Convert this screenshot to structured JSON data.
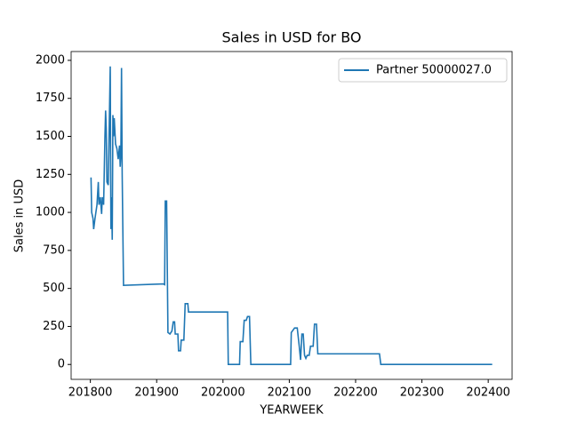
{
  "chart_data": {
    "type": "line",
    "title": "Sales in USD for BO",
    "xlabel": "YEARWEEK",
    "ylabel": "Sales in USD",
    "legend": "upper right",
    "xlim": [
      201771,
      202436
    ],
    "xticks": [
      201800,
      201900,
      202000,
      202100,
      202200,
      202300,
      202400
    ],
    "ylim": [
      -98,
      2058
    ],
    "yticks": [
      0,
      250,
      500,
      750,
      1000,
      1250,
      1500,
      1750,
      2000
    ],
    "x": [
      201801,
      201802,
      201804,
      201805,
      201807,
      201810,
      201812,
      201813,
      201815,
      201817,
      201818,
      201820,
      201822,
      201823,
      201824,
      201825,
      201827,
      201830,
      201831,
      201832,
      201833,
      201834,
      201835,
      201836,
      201838,
      201840,
      201842,
      201844,
      201845,
      201846,
      201847,
      201848,
      201850,
      201910,
      201912,
      201913,
      201915,
      201917,
      201920,
      201923,
      201925,
      201927,
      201928,
      201932,
      201933,
      201936,
      201937,
      201941,
      201943,
      201947,
      201948,
      202007,
      202008,
      202025,
      202026,
      202030,
      202032,
      202035,
      202037,
      202040,
      202042,
      202102,
      202103,
      202108,
      202112,
      202115,
      202117,
      202119,
      202121,
      202123,
      202125,
      202127,
      202130,
      202132,
      202136,
      202138,
      202141,
      202143,
      202236,
      202238,
      202406
    ],
    "series": [
      {
        "name": "Partner 50000027.0",
        "color": "#1f77b4",
        "values": [
          1230,
          1000,
          960,
          890,
          960,
          1050,
          1200,
          1050,
          1100,
          990,
          1100,
          1050,
          1500,
          1670,
          1550,
          1200,
          1180,
          1960,
          890,
          1100,
          820,
          1640,
          1500,
          1620,
          1450,
          1420,
          1350,
          1440,
          1300,
          1380,
          1950,
          1250,
          520,
          530,
          525,
          1075,
          1075,
          210,
          200,
          220,
          280,
          280,
          200,
          200,
          90,
          90,
          160,
          160,
          400,
          400,
          345,
          345,
          0,
          0,
          150,
          150,
          290,
          290,
          315,
          315,
          0,
          0,
          210,
          240,
          240,
          120,
          30,
          200,
          200,
          60,
          40,
          60,
          60,
          120,
          120,
          265,
          265,
          70,
          70,
          0,
          0
        ]
      }
    ]
  }
}
